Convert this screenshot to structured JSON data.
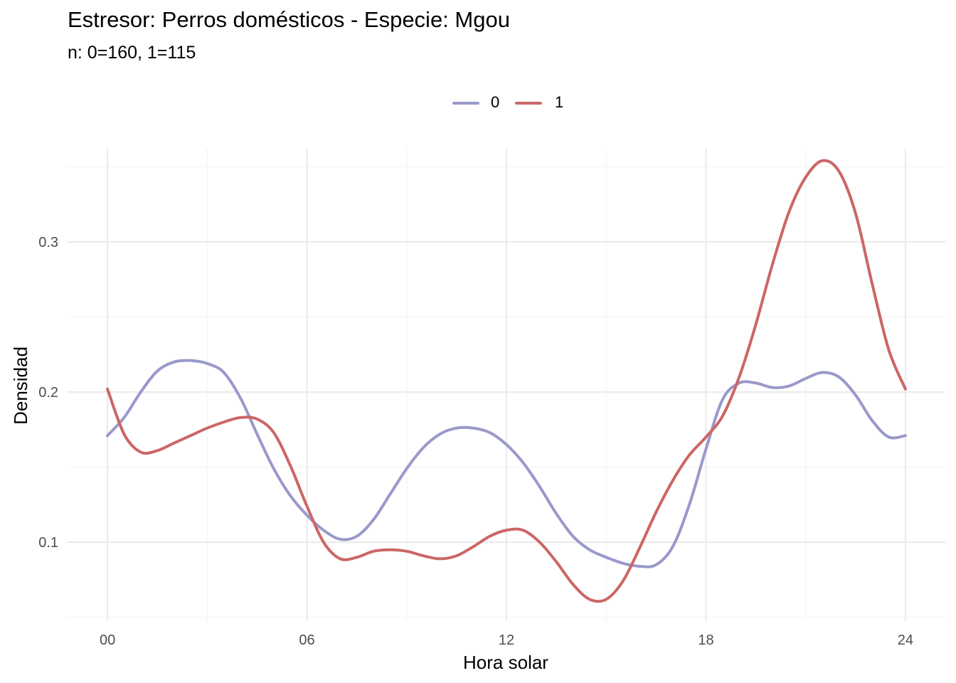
{
  "chart_data": {
    "type": "line",
    "title": "Estresor: Perros domésticos - Especie:  Mgou",
    "subtitle": "n:  0=160, 1=115",
    "xlabel": "Hora solar",
    "ylabel": "Densidad",
    "xlim": [
      -1.2,
      25.2
    ],
    "ylim": [
      0.0475,
      0.362
    ],
    "x_ticks": [
      0,
      6,
      12,
      18,
      24
    ],
    "x_tick_labels": [
      "00",
      "06",
      "12",
      "18",
      "24"
    ],
    "y_ticks": [
      0.1,
      0.2,
      0.3
    ],
    "y_tick_labels": [
      "0.1",
      "0.2",
      "0.3"
    ],
    "grid": true,
    "legend_position": "top",
    "series": [
      {
        "name": "0",
        "color": "#9999cc",
        "x": [
          0,
          0.5,
          1,
          1.5,
          2,
          2.5,
          3,
          3.5,
          4,
          4.5,
          5,
          5.5,
          6,
          6.5,
          7,
          7.5,
          8,
          8.5,
          9,
          9.5,
          10,
          10.5,
          11,
          11.5,
          12,
          12.5,
          13,
          13.5,
          14,
          14.5,
          15,
          15.5,
          16,
          16.5,
          17,
          17.5,
          18,
          18.5,
          19,
          19.5,
          20,
          20.5,
          21,
          21.5,
          22,
          22.5,
          23,
          23.5,
          24
        ],
        "values": [
          0.171,
          0.183,
          0.2,
          0.214,
          0.22,
          0.221,
          0.219,
          0.213,
          0.196,
          0.172,
          0.149,
          0.131,
          0.118,
          0.108,
          0.102,
          0.104,
          0.115,
          0.132,
          0.149,
          0.163,
          0.172,
          0.176,
          0.176,
          0.173,
          0.165,
          0.153,
          0.137,
          0.119,
          0.104,
          0.095,
          0.09,
          0.086,
          0.084,
          0.085,
          0.097,
          0.125,
          0.162,
          0.195,
          0.206,
          0.206,
          0.203,
          0.204,
          0.209,
          0.213,
          0.21,
          0.198,
          0.181,
          0.17,
          0.171
        ]
      },
      {
        "name": "1",
        "color": "#cc6666",
        "x": [
          0,
          0.5,
          1,
          1.5,
          2,
          2.5,
          3,
          3.5,
          4,
          4.5,
          5,
          5.5,
          6,
          6.5,
          7,
          7.5,
          8,
          8.5,
          9,
          9.5,
          10,
          10.5,
          11,
          11.5,
          12,
          12.5,
          13,
          13.5,
          14,
          14.5,
          15,
          15.5,
          16,
          16.5,
          17,
          17.5,
          18,
          18.5,
          19,
          19.5,
          20,
          20.5,
          21,
          21.5,
          22,
          22.5,
          23,
          23.5,
          24
        ],
        "values": [
          0.202,
          0.172,
          0.16,
          0.161,
          0.166,
          0.171,
          0.176,
          0.18,
          0.183,
          0.182,
          0.173,
          0.151,
          0.124,
          0.1,
          0.089,
          0.09,
          0.094,
          0.095,
          0.094,
          0.091,
          0.089,
          0.091,
          0.097,
          0.104,
          0.108,
          0.108,
          0.1,
          0.087,
          0.072,
          0.062,
          0.062,
          0.074,
          0.096,
          0.12,
          0.141,
          0.158,
          0.17,
          0.184,
          0.21,
          0.245,
          0.285,
          0.32,
          0.343,
          0.354,
          0.347,
          0.319,
          0.272,
          0.228,
          0.202
        ]
      }
    ]
  }
}
